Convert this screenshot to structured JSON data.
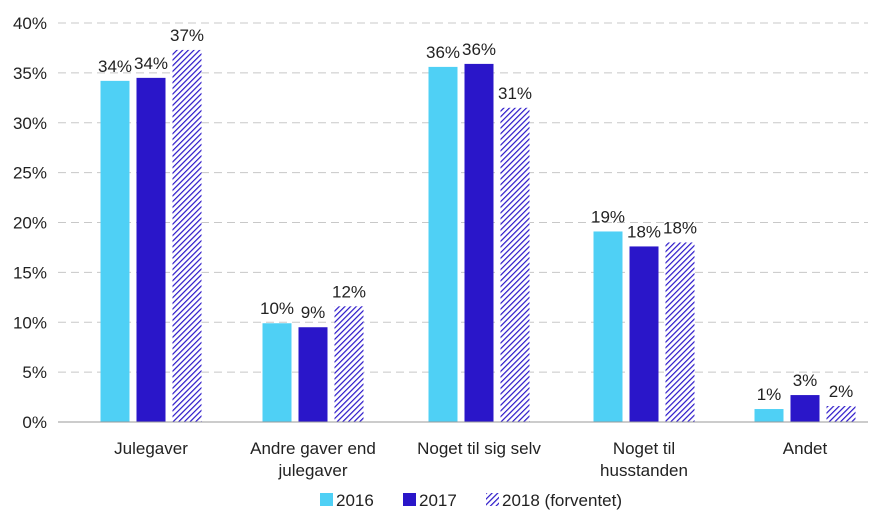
{
  "chart_data": {
    "type": "bar",
    "title": "",
    "xlabel": "",
    "ylabel": "",
    "ylim": [
      0,
      40
    ],
    "yticks": [
      "0%",
      "5%",
      "10%",
      "15%",
      "20%",
      "25%",
      "30%",
      "35%",
      "40%"
    ],
    "grid": true,
    "legend_position": "bottom",
    "categories": [
      [
        "Julegaver"
      ],
      [
        "Andre gaver end",
        "julegaver"
      ],
      [
        "Noget til sig selv"
      ],
      [
        "Noget til",
        "husstanden"
      ],
      [
        "Andet"
      ]
    ],
    "series": [
      {
        "name": "2016",
        "color": "#4fd0f5",
        "pattern": "solid",
        "values": [
          34.2,
          9.9,
          35.6,
          19.1,
          1.3
        ],
        "labels": [
          "34%",
          "10%",
          "36%",
          "19%",
          "1%"
        ]
      },
      {
        "name": "2017",
        "color": "#2a16c9",
        "pattern": "solid",
        "values": [
          34.5,
          9.5,
          35.9,
          17.6,
          2.7
        ],
        "labels": [
          "34%",
          "9%",
          "36%",
          "18%",
          "3%"
        ]
      },
      {
        "name": "2018 (forventet)",
        "color": "#2a16c9",
        "pattern": "hatched",
        "values": [
          37.3,
          11.6,
          31.5,
          18.0,
          1.6
        ],
        "labels": [
          "37%",
          "12%",
          "31%",
          "18%",
          "2%"
        ]
      }
    ]
  }
}
